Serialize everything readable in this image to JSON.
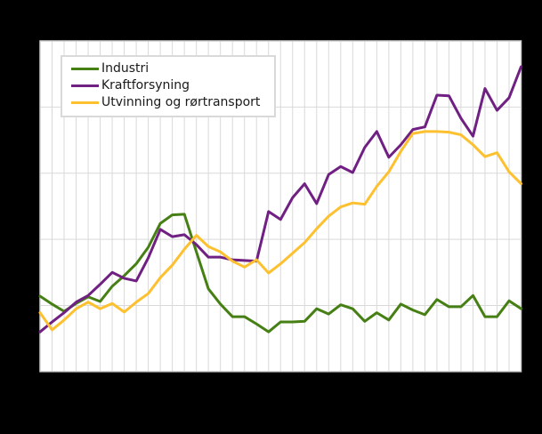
{
  "figure": {
    "background_color": "#000000",
    "plot_background_color": "#ffffff",
    "grid_color": "#d9d9d9",
    "border_color": "#cfcfcf"
  },
  "chart_data": {
    "type": "line",
    "title": "",
    "xlabel": "",
    "ylabel": "",
    "axis_tick_labels_visible": false,
    "legend_position": "top-left",
    "grid": "on",
    "x_divisions": 40,
    "ylim": [
      0,
      5
    ],
    "y_gridline_step": 1,
    "x": [
      0,
      1,
      2,
      3,
      4,
      5,
      6,
      7,
      8,
      9,
      10,
      11,
      12,
      13,
      14,
      15,
      16,
      17,
      18,
      19,
      20,
      21,
      22,
      23,
      24,
      25,
      26,
      27,
      28,
      29,
      30,
      31,
      32,
      33,
      34,
      35,
      36,
      37,
      38,
      39,
      40
    ],
    "series": [
      {
        "name": "Industri",
        "color": "#467f14",
        "values": [
          1.14,
          1.02,
          0.91,
          1.03,
          1.13,
          1.06,
          1.29,
          1.45,
          1.63,
          1.88,
          2.24,
          2.37,
          2.38,
          1.81,
          1.25,
          1.02,
          0.83,
          0.83,
          0.72,
          0.6,
          0.75,
          0.75,
          0.76,
          0.95,
          0.87,
          1.01,
          0.95,
          0.76,
          0.89,
          0.78,
          1.02,
          0.93,
          0.86,
          1.09,
          0.98,
          0.98,
          1.15,
          0.83,
          0.83,
          1.07,
          0.95
        ]
      },
      {
        "name": "Kraftforsyning",
        "color": "#702082",
        "values": [
          0.6,
          0.75,
          0.89,
          1.05,
          1.15,
          1.32,
          1.5,
          1.41,
          1.37,
          1.72,
          2.15,
          2.04,
          2.07,
          1.92,
          1.73,
          1.73,
          1.69,
          1.68,
          1.67,
          2.42,
          2.3,
          2.63,
          2.84,
          2.54,
          2.98,
          3.1,
          3.01,
          3.39,
          3.63,
          3.24,
          3.43,
          3.66,
          3.7,
          4.18,
          4.17,
          3.83,
          3.56,
          4.28,
          3.95,
          4.14,
          4.61
        ]
      },
      {
        "name": "Utvinning og rørtransport",
        "color": "#fdc02f",
        "values": [
          0.89,
          0.63,
          0.78,
          0.95,
          1.05,
          0.95,
          1.03,
          0.9,
          1.05,
          1.18,
          1.42,
          1.61,
          1.85,
          2.06,
          1.89,
          1.81,
          1.67,
          1.58,
          1.69,
          1.49,
          1.63,
          1.79,
          1.95,
          2.16,
          2.35,
          2.49,
          2.55,
          2.53,
          2.8,
          3.02,
          3.33,
          3.6,
          3.63,
          3.63,
          3.62,
          3.58,
          3.43,
          3.25,
          3.31,
          3.02,
          2.84
        ]
      }
    ]
  }
}
